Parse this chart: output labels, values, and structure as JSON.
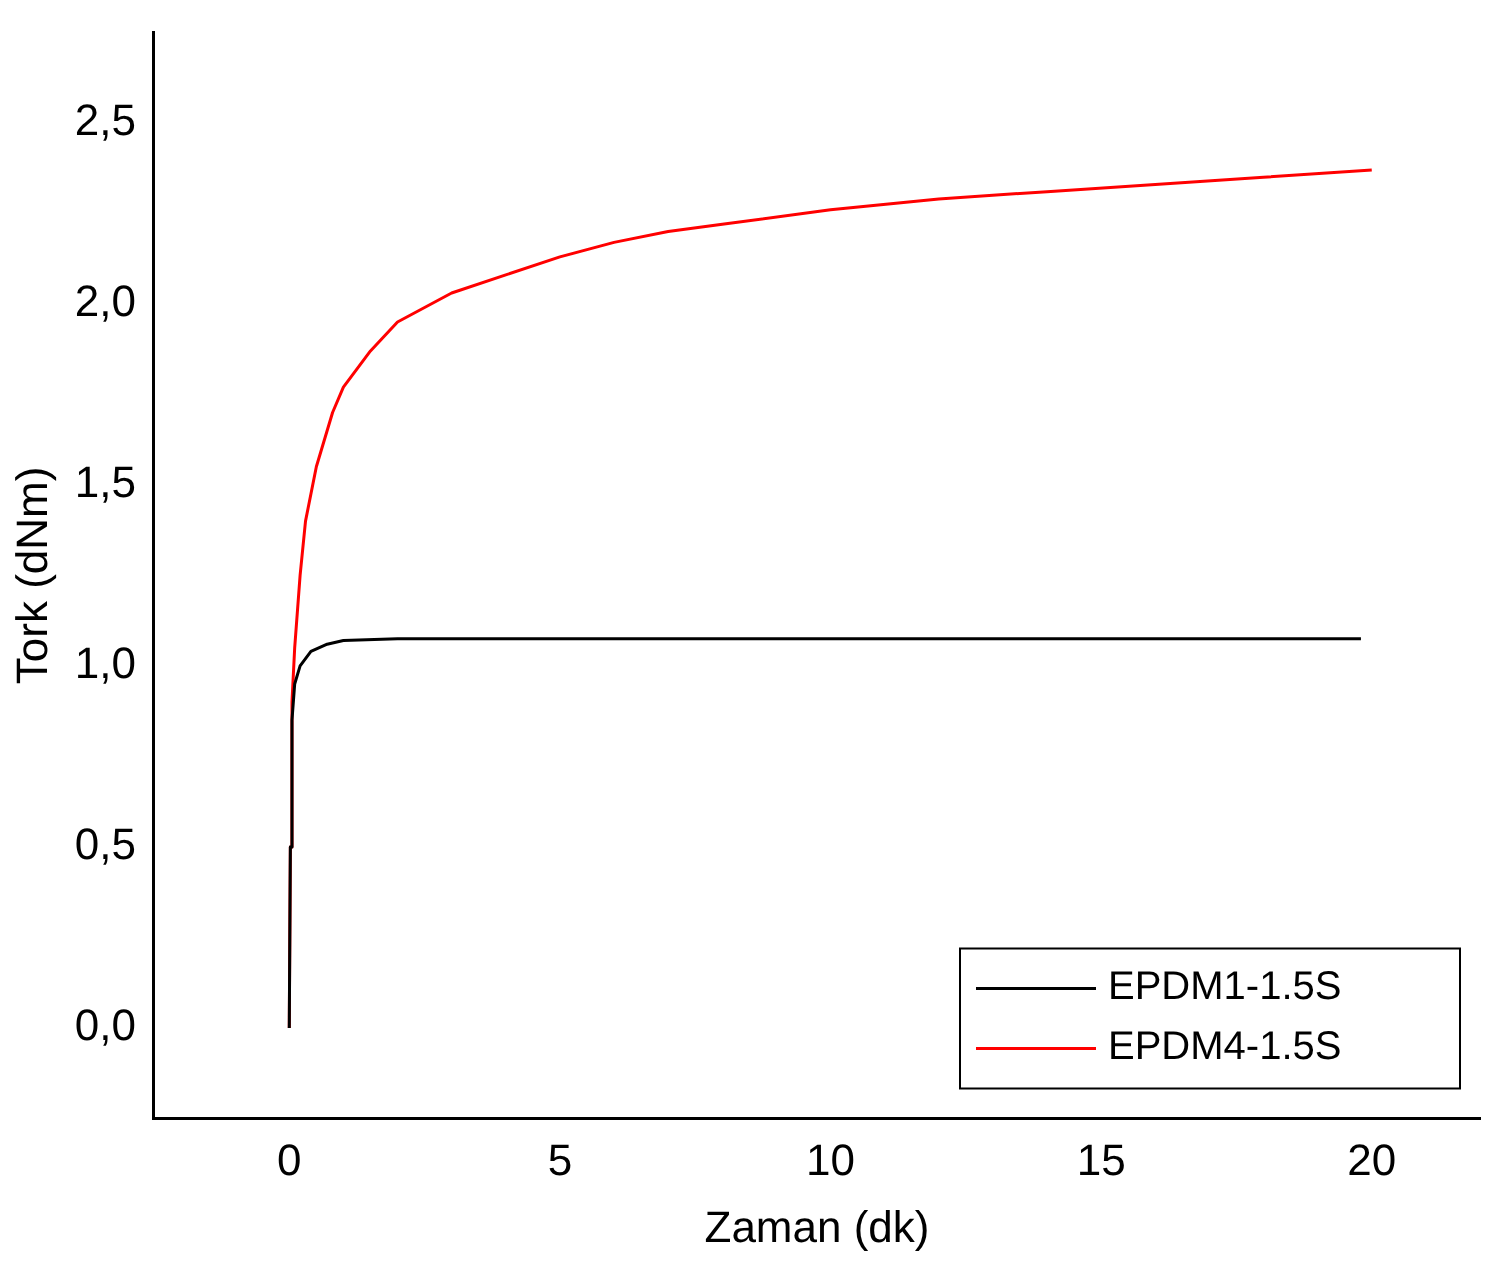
{
  "chart_data": {
    "type": "line",
    "xlabel": "Zaman (dk)",
    "ylabel": "Tork (dNm)",
    "xlim": [
      -2.5,
      22
    ],
    "xticks": [
      0,
      5,
      10,
      15,
      20
    ],
    "ylim": [
      -0.25,
      2.75
    ],
    "yticks": [
      {
        "value": 0,
        "label": "0,0"
      },
      {
        "value": 0.5,
        "label": "0,5"
      },
      {
        "value": 1,
        "label": "1,0"
      },
      {
        "value": 1.5,
        "label": "1,5"
      },
      {
        "value": 2,
        "label": "2,0"
      },
      {
        "value": 2.5,
        "label": "2,5"
      }
    ],
    "grid": false,
    "legend": "bottom right",
    "marker": "none",
    "line_style": "solid",
    "series": [
      {
        "name": "EPDM1-1.5S",
        "color": "#000000",
        "x": [
          0,
          0.02,
          0.05,
          0.1,
          0.2,
          0.4,
          0.7,
          1,
          2,
          5,
          10,
          15,
          19.8
        ],
        "values": [
          0,
          0.5,
          0.85,
          0.95,
          1.0,
          1.04,
          1.06,
          1.07,
          1.075,
          1.075,
          1.075,
          1.075,
          1.075
        ]
      },
      {
        "name": "EPDM4-1.5S",
        "color": "#ff0000",
        "x": [
          0,
          0.02,
          0.05,
          0.1,
          0.2,
          0.3,
          0.5,
          0.8,
          1,
          1.5,
          2,
          3,
          4,
          5,
          6,
          7,
          8,
          10,
          12,
          14,
          16,
          18,
          20
        ],
        "values": [
          0,
          0.5,
          0.9,
          1.05,
          1.25,
          1.4,
          1.55,
          1.7,
          1.77,
          1.87,
          1.95,
          2.03,
          2.08,
          2.13,
          2.17,
          2.2,
          2.22,
          2.26,
          2.29,
          2.31,
          2.33,
          2.35,
          2.37
        ]
      }
    ]
  }
}
